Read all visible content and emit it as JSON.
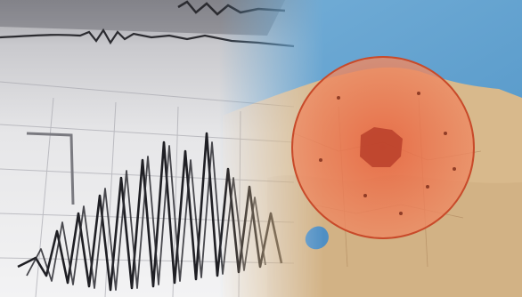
{
  "scene": {
    "left_panel": "seismograph",
    "right_panel": "map",
    "zone_color": "#e8704a",
    "sea_color": "#5ea2cf",
    "land_color": "#d9b98e"
  }
}
